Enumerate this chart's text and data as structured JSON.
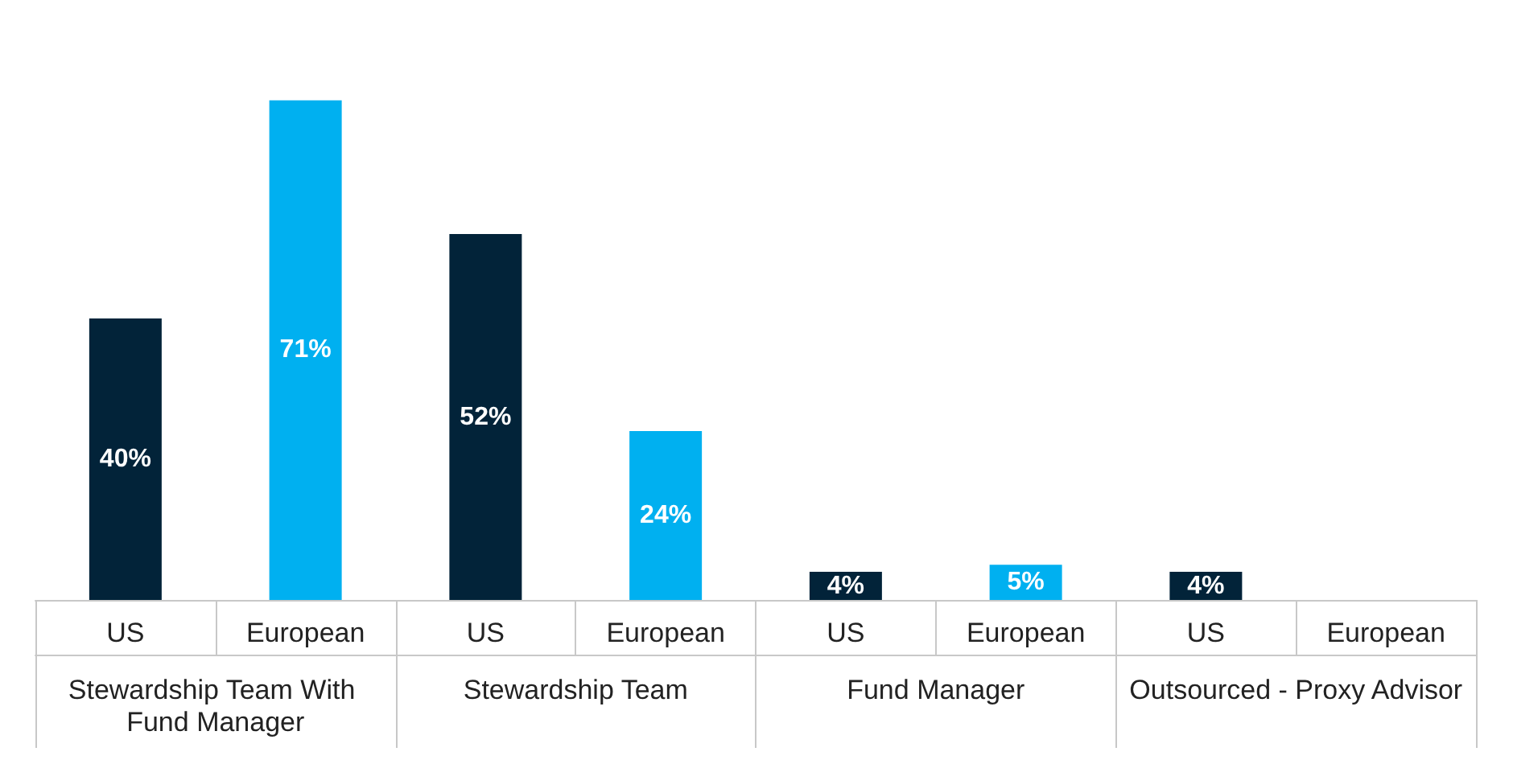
{
  "chart_data": {
    "type": "bar",
    "categories": [
      "Stewardship Team With Fund Manager",
      "Stewardship Team",
      "Fund Manager",
      "Outsourced - Proxy Advisor"
    ],
    "series": [
      {
        "name": "US",
        "color": "#022339",
        "values": [
          40,
          52,
          4,
          4
        ],
        "value_labels": [
          "40%",
          "52%",
          "4%",
          "4%"
        ]
      },
      {
        "name": "European",
        "color": "#00b0f0",
        "values": [
          71,
          24,
          5,
          null
        ],
        "value_labels": [
          "71%",
          "24%",
          "5%",
          null
        ]
      }
    ],
    "legend": false,
    "grid": false
  }
}
